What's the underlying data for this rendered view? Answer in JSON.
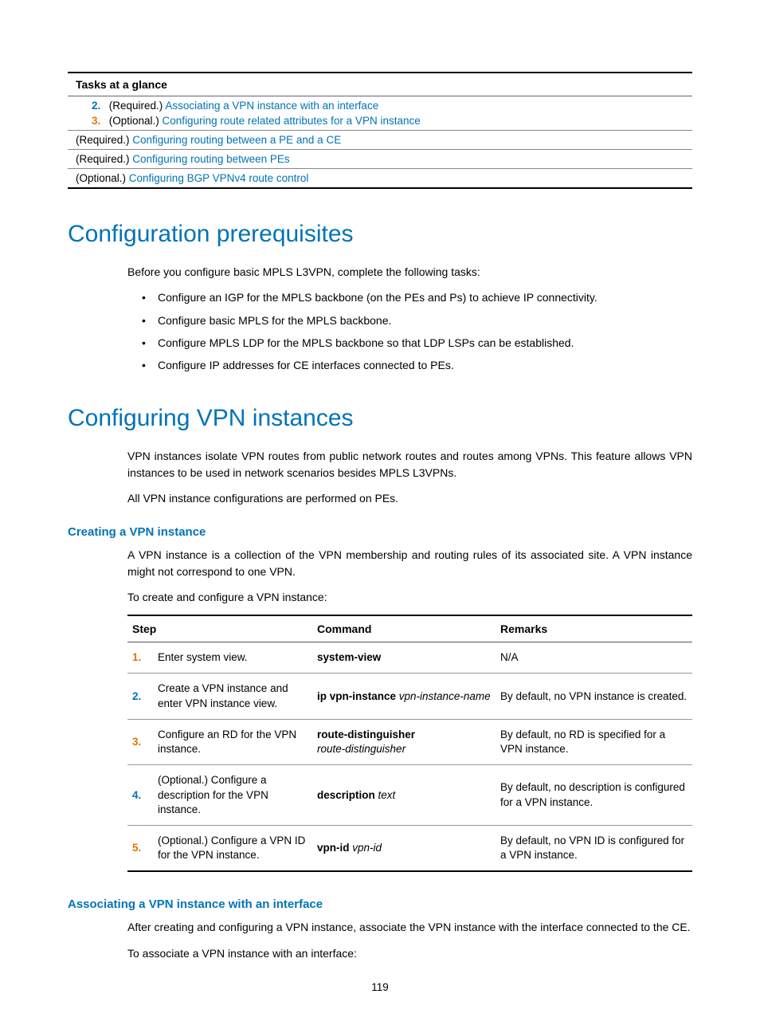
{
  "tasks_table": {
    "header": "Tasks at a glance",
    "rows": [
      {
        "items": [
          {
            "num": "2.",
            "num_class": "n2",
            "prefix": "(Required.) ",
            "link": "Associating a VPN instance with an interface"
          },
          {
            "num": "3.",
            "num_class": "n3",
            "prefix": "(Optional.) ",
            "link": "Configuring route related attributes for a VPN instance"
          }
        ]
      },
      {
        "plain": {
          "prefix": "(Required.) ",
          "link": "Configuring routing between a PE and a CE"
        }
      },
      {
        "plain": {
          "prefix": "(Required.) ",
          "link": "Configuring routing between PEs"
        }
      },
      {
        "plain": {
          "prefix": "(Optional.) ",
          "link": "Configuring BGP VPNv4 route control"
        }
      }
    ]
  },
  "sections": {
    "prereq": {
      "title": "Configuration prerequisites",
      "intro": "Before you configure basic MPLS L3VPN, complete the following tasks:",
      "bullets": [
        "Configure an IGP for the MPLS backbone (on the PEs and Ps) to achieve IP connectivity.",
        "Configure basic MPLS for the MPLS backbone.",
        "Configure MPLS LDP for the MPLS backbone so that LDP LSPs can be established.",
        "Configure IP addresses for CE interfaces connected to PEs."
      ]
    },
    "vpn": {
      "title": "Configuring VPN instances",
      "p1": "VPN instances isolate VPN routes from public network routes and routes among VPNs. This feature allows VPN instances to be used in network scenarios besides MPLS L3VPNs.",
      "p2": "All VPN instance configurations are performed on PEs.",
      "creating": {
        "title": "Creating a VPN instance",
        "p1": "A VPN instance is a collection of the VPN membership and routing rules of its associated site. A VPN instance might not correspond to one VPN.",
        "p2": "To create and configure a VPN instance:"
      },
      "assoc": {
        "title": "Associating a VPN instance with an interface",
        "p1": "After creating and configuring a VPN instance, associate the VPN instance with the interface connected to the CE.",
        "p2": "To associate a VPN instance with an interface:"
      }
    }
  },
  "step_table": {
    "headers": {
      "step": "Step",
      "command": "Command",
      "remarks": "Remarks"
    },
    "rows": [
      {
        "num": "1.",
        "num_color": "#e57502",
        "step": "Enter system view.",
        "cmd_bold": "system-view",
        "cmd_ital": "",
        "remark": "N/A"
      },
      {
        "num": "2.",
        "num_color": "#0073b5",
        "step": "Create a VPN instance and enter VPN instance view.",
        "cmd_bold": "ip vpn-instance ",
        "cmd_ital": "vpn-instance-name",
        "remark": "By default, no VPN instance is created."
      },
      {
        "num": "3.",
        "num_color": "#e57502",
        "step": "Configure an RD for the VPN instance.",
        "cmd_bold": "route-distinguisher",
        "cmd_ital_newline": "route-distinguisher",
        "remark": "By default, no RD is specified for a VPN instance."
      },
      {
        "num": "4.",
        "num_color": "#0073b5",
        "step": "(Optional.) Configure a description for the VPN instance.",
        "cmd_bold": "description ",
        "cmd_ital": "text",
        "remark": "By default, no description is configured for a VPN instance."
      },
      {
        "num": "5.",
        "num_color": "#e57502",
        "step": "(Optional.) Configure a VPN ID for the VPN instance.",
        "cmd_bold": "vpn-id ",
        "cmd_ital": "vpn-id",
        "remark": "By default, no VPN ID is configured for a VPN instance."
      }
    ]
  },
  "page_number": "119",
  "colors": {
    "link": "#0073b5",
    "heading": "#0073b5"
  }
}
